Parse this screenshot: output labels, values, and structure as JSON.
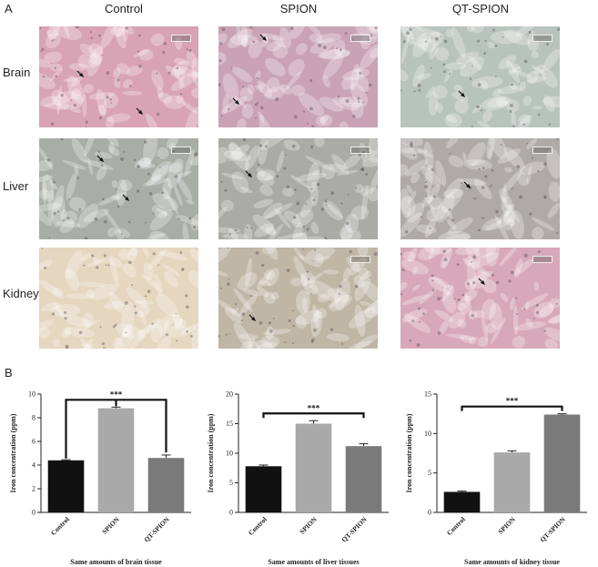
{
  "figure": {
    "panel_a_label": "A",
    "panel_b_label": "B",
    "columns": [
      "Control",
      "SPION",
      "QT-SPION"
    ],
    "rows": [
      "Brain",
      "Liver",
      "Kidney"
    ]
  },
  "colors": {
    "control_bar": "#111111",
    "spion_bar": "#a9a9a9",
    "qtspion_bar": "#7a7a7a",
    "brain_stain": "#d8a3b4",
    "liver_stain": "#a8ada6",
    "kidney_stain": "#e5d6bf",
    "arrow": "#111111"
  },
  "chart_data": [
    {
      "type": "bar",
      "categories": [
        "Control",
        "SPION",
        "QT-SPION"
      ],
      "values": [
        4.4,
        8.8,
        4.6
      ],
      "errors": [
        0.05,
        0.1,
        0.25
      ],
      "ylabel": "Iron concentration (ppm)",
      "xlabel": "Same amounts of brain tissue",
      "ylim": [
        0,
        10
      ],
      "yticks": [
        "0",
        "2",
        "4",
        "6",
        "8",
        "10"
      ],
      "significance": "***"
    },
    {
      "type": "bar",
      "categories": [
        "Control",
        "SPION",
        "QT-SPION"
      ],
      "values": [
        7.8,
        15.0,
        11.2
      ],
      "errors": [
        0.2,
        0.5,
        0.4
      ],
      "ylabel": "Iron concentration (ppm)",
      "xlabel": "Same amounts of liver tissues",
      "ylim": [
        0,
        20
      ],
      "yticks": [
        "0",
        "5",
        "10",
        "15",
        "20"
      ],
      "significance": "***"
    },
    {
      "type": "bar",
      "categories": [
        "Control",
        "SPION",
        "QT-SPION"
      ],
      "values": [
        2.6,
        7.6,
        12.4
      ],
      "errors": [
        0.1,
        0.2,
        0.1
      ],
      "ylabel": "Iron concentration (ppm)",
      "xlabel": "Same amounts of kidney tissue",
      "ylim": [
        0,
        15
      ],
      "yticks": [
        "0",
        "5",
        "10",
        "15"
      ],
      "significance": "***"
    }
  ]
}
